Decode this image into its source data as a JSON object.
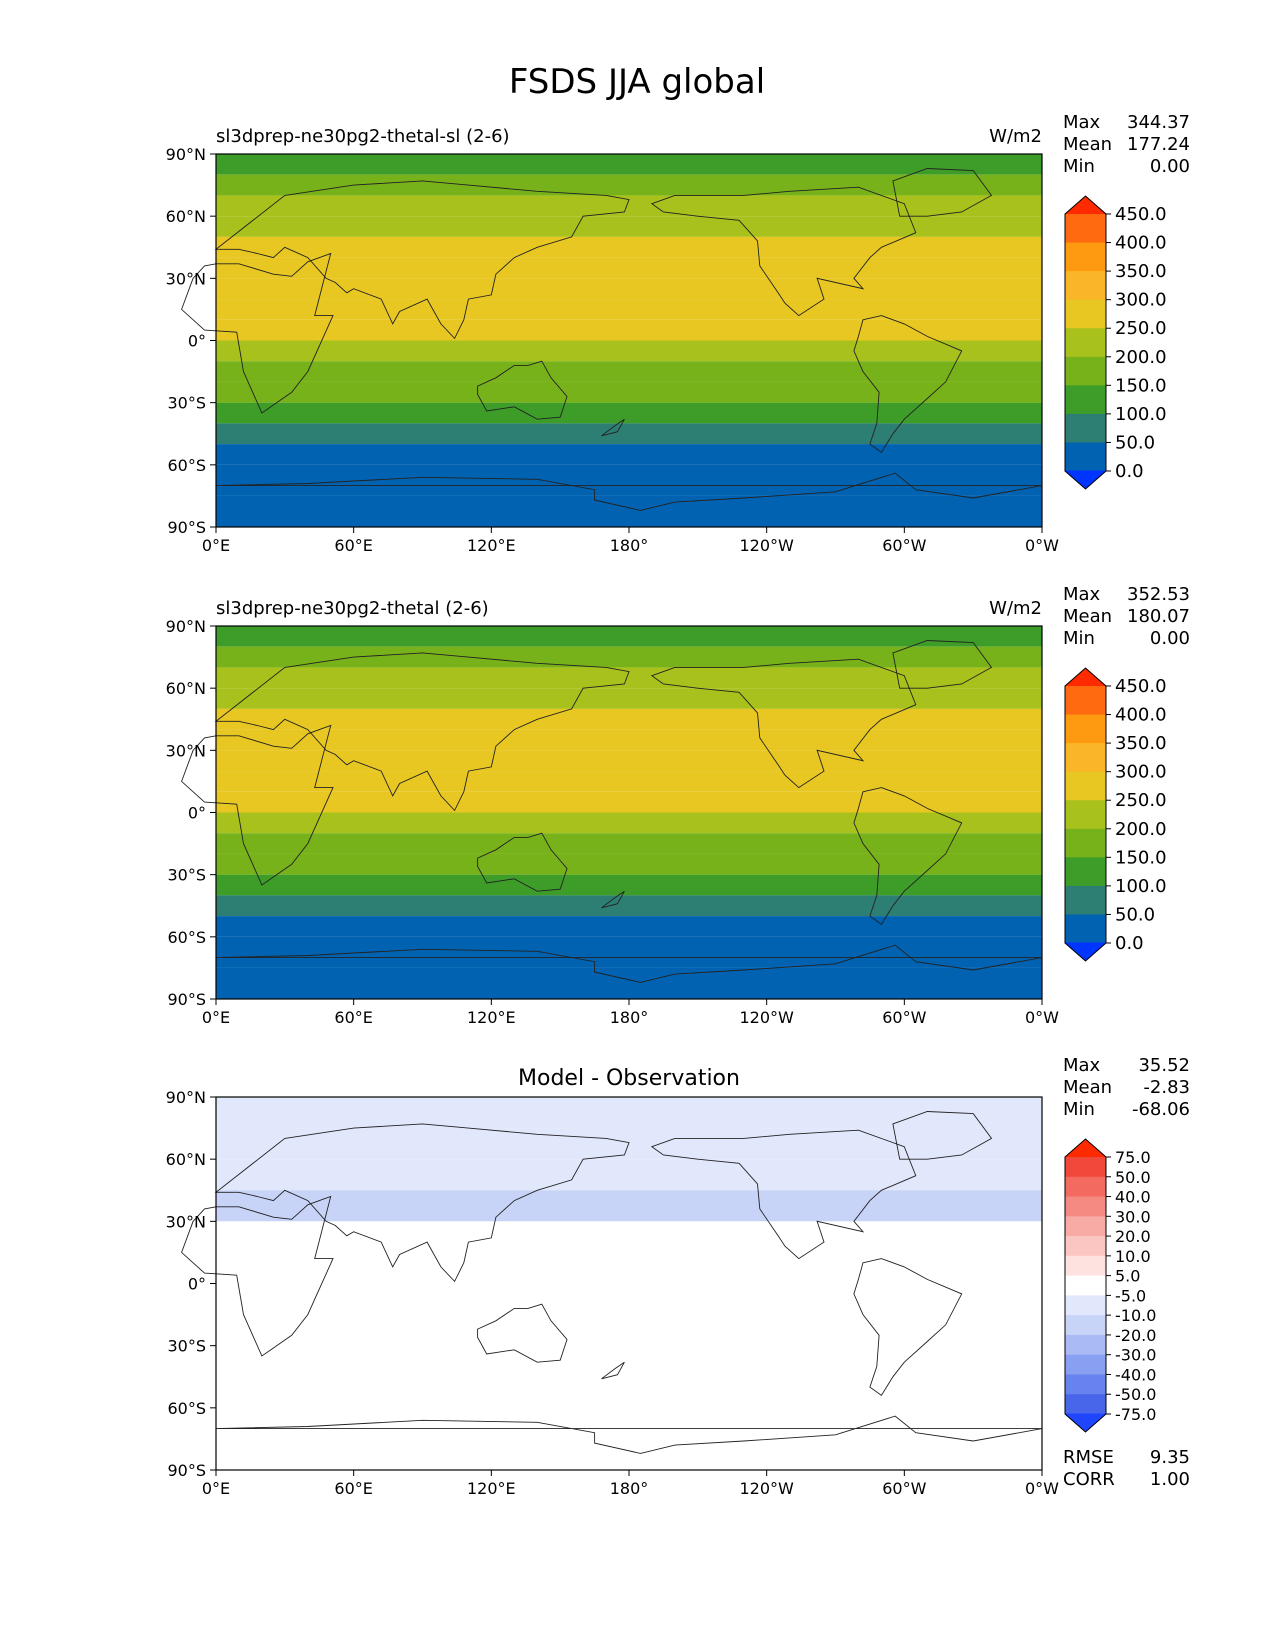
{
  "title": "FSDS JJA global",
  "chart_data": [
    {
      "type": "heatmap",
      "title": "sl3dprep-ne30pg2-thetal-sl (2-6)",
      "units": "W/m2",
      "stats": [
        {
          "label": "Max",
          "value": "344.37"
        },
        {
          "label": "Mean",
          "value": "177.24"
        },
        {
          "label": "Min",
          "value": "0.00"
        }
      ],
      "xlim": [
        0,
        360
      ],
      "ylim": [
        -90,
        90
      ],
      "xticks": [
        "0°E",
        "60°E",
        "120°E",
        "180°",
        "120°W",
        "60°W",
        "0°W"
      ],
      "yticks": [
        "90°N",
        "60°N",
        "30°N",
        "0°",
        "30°S",
        "60°S",
        "90°S"
      ],
      "colorbar": {
        "levels": [
          "450.0",
          "400.0",
          "350.0",
          "300.0",
          "250.0",
          "200.0",
          "150.0",
          "100.0",
          "50.0",
          "0.0"
        ],
        "colors": [
          "#ff2a00",
          "#ff6a10",
          "#fd9a10",
          "#fbb528",
          "#e8c723",
          "#a9c11c",
          "#78b21a",
          "#3e9d29",
          "#2e7f73",
          "#0062b0",
          "#0035ff"
        ]
      },
      "zonal_profile": [
        {
          "lat": 90,
          "value": 140
        },
        {
          "lat": 80,
          "value": 150
        },
        {
          "lat": 70,
          "value": 190
        },
        {
          "lat": 60,
          "value": 210
        },
        {
          "lat": 50,
          "value": 240
        },
        {
          "lat": 40,
          "value": 270
        },
        {
          "lat": 30,
          "value": 280
        },
        {
          "lat": 20,
          "value": 270
        },
        {
          "lat": 10,
          "value": 260
        },
        {
          "lat": 0,
          "value": 245
        },
        {
          "lat": -10,
          "value": 215
        },
        {
          "lat": -20,
          "value": 180
        },
        {
          "lat": -30,
          "value": 140
        },
        {
          "lat": -40,
          "value": 80
        },
        {
          "lat": -50,
          "value": 30
        },
        {
          "lat": -60,
          "value": 10
        },
        {
          "lat": -75,
          "value": 0
        },
        {
          "lat": -90,
          "value": 0
        }
      ]
    },
    {
      "type": "heatmap",
      "title": "sl3dprep-ne30pg2-thetal (2-6)",
      "units": "W/m2",
      "stats": [
        {
          "label": "Max",
          "value": "352.53"
        },
        {
          "label": "Mean",
          "value": "180.07"
        },
        {
          "label": "Min",
          "value": "0.00"
        }
      ],
      "xlim": [
        0,
        360
      ],
      "ylim": [
        -90,
        90
      ],
      "xticks": [
        "0°E",
        "60°E",
        "120°E",
        "180°",
        "120°W",
        "60°W",
        "0°W"
      ],
      "yticks": [
        "90°N",
        "60°N",
        "30°N",
        "0°",
        "30°S",
        "60°S",
        "90°S"
      ],
      "colorbar": {
        "levels": [
          "450.0",
          "400.0",
          "350.0",
          "300.0",
          "250.0",
          "200.0",
          "150.0",
          "100.0",
          "50.0",
          "0.0"
        ],
        "colors": [
          "#ff2a00",
          "#ff6a10",
          "#fd9a10",
          "#fbb528",
          "#e8c723",
          "#a9c11c",
          "#78b21a",
          "#3e9d29",
          "#2e7f73",
          "#0062b0",
          "#0035ff"
        ]
      },
      "zonal_profile": [
        {
          "lat": 90,
          "value": 140
        },
        {
          "lat": 80,
          "value": 150
        },
        {
          "lat": 70,
          "value": 190
        },
        {
          "lat": 60,
          "value": 215
        },
        {
          "lat": 50,
          "value": 245
        },
        {
          "lat": 40,
          "value": 275
        },
        {
          "lat": 30,
          "value": 285
        },
        {
          "lat": 20,
          "value": 275
        },
        {
          "lat": 10,
          "value": 262
        },
        {
          "lat": 0,
          "value": 245
        },
        {
          "lat": -10,
          "value": 215
        },
        {
          "lat": -20,
          "value": 180
        },
        {
          "lat": -30,
          "value": 140
        },
        {
          "lat": -40,
          "value": 80
        },
        {
          "lat": -50,
          "value": 30
        },
        {
          "lat": -60,
          "value": 10
        },
        {
          "lat": -75,
          "value": 0
        },
        {
          "lat": -90,
          "value": 0
        }
      ]
    },
    {
      "type": "heatmap",
      "title": "Model - Observation",
      "units": "",
      "stats": [
        {
          "label": "Max",
          "value": "35.52"
        },
        {
          "label": "Mean",
          "value": "-2.83"
        },
        {
          "label": "Min",
          "value": "-68.06"
        }
      ],
      "metrics": [
        {
          "label": "RMSE",
          "value": "9.35"
        },
        {
          "label": "CORR",
          "value": "1.00"
        }
      ],
      "xlim": [
        0,
        360
      ],
      "ylim": [
        -90,
        90
      ],
      "xticks": [
        "0°E",
        "60°E",
        "120°E",
        "180°",
        "120°W",
        "60°W",
        "0°W"
      ],
      "yticks": [
        "90°N",
        "60°N",
        "30°N",
        "0°",
        "30°S",
        "60°S",
        "90°S"
      ],
      "colorbar": {
        "levels": [
          "75.0",
          "50.0",
          "40.0",
          "30.0",
          "20.0",
          "10.0",
          "5.0",
          "-5.0",
          "-10.0",
          "-20.0",
          "-30.0",
          "-40.0",
          "-50.0",
          "-75.0"
        ],
        "colors": [
          "#ff2a00",
          "#f0483a",
          "#f26a60",
          "#f58a82",
          "#f8aaa4",
          "#fbc6c2",
          "#fde2e0",
          "#ffffff",
          "#e2e8fb",
          "#c8d3f8",
          "#a9baf5",
          "#889ff2",
          "#6783ee",
          "#4766ea",
          "#1f45ff"
        ]
      },
      "zonal_profile": [
        {
          "lat": 90,
          "value": -5
        },
        {
          "lat": 75,
          "value": -10
        },
        {
          "lat": 60,
          "value": -8
        },
        {
          "lat": 45,
          "value": -10
        },
        {
          "lat": 30,
          "value": -12
        },
        {
          "lat": 15,
          "value": 6
        },
        {
          "lat": 5,
          "value": -6
        },
        {
          "lat": -10,
          "value": 4
        },
        {
          "lat": -25,
          "value": -6
        },
        {
          "lat": -40,
          "value": 0
        },
        {
          "lat": -90,
          "value": 0
        }
      ]
    }
  ]
}
